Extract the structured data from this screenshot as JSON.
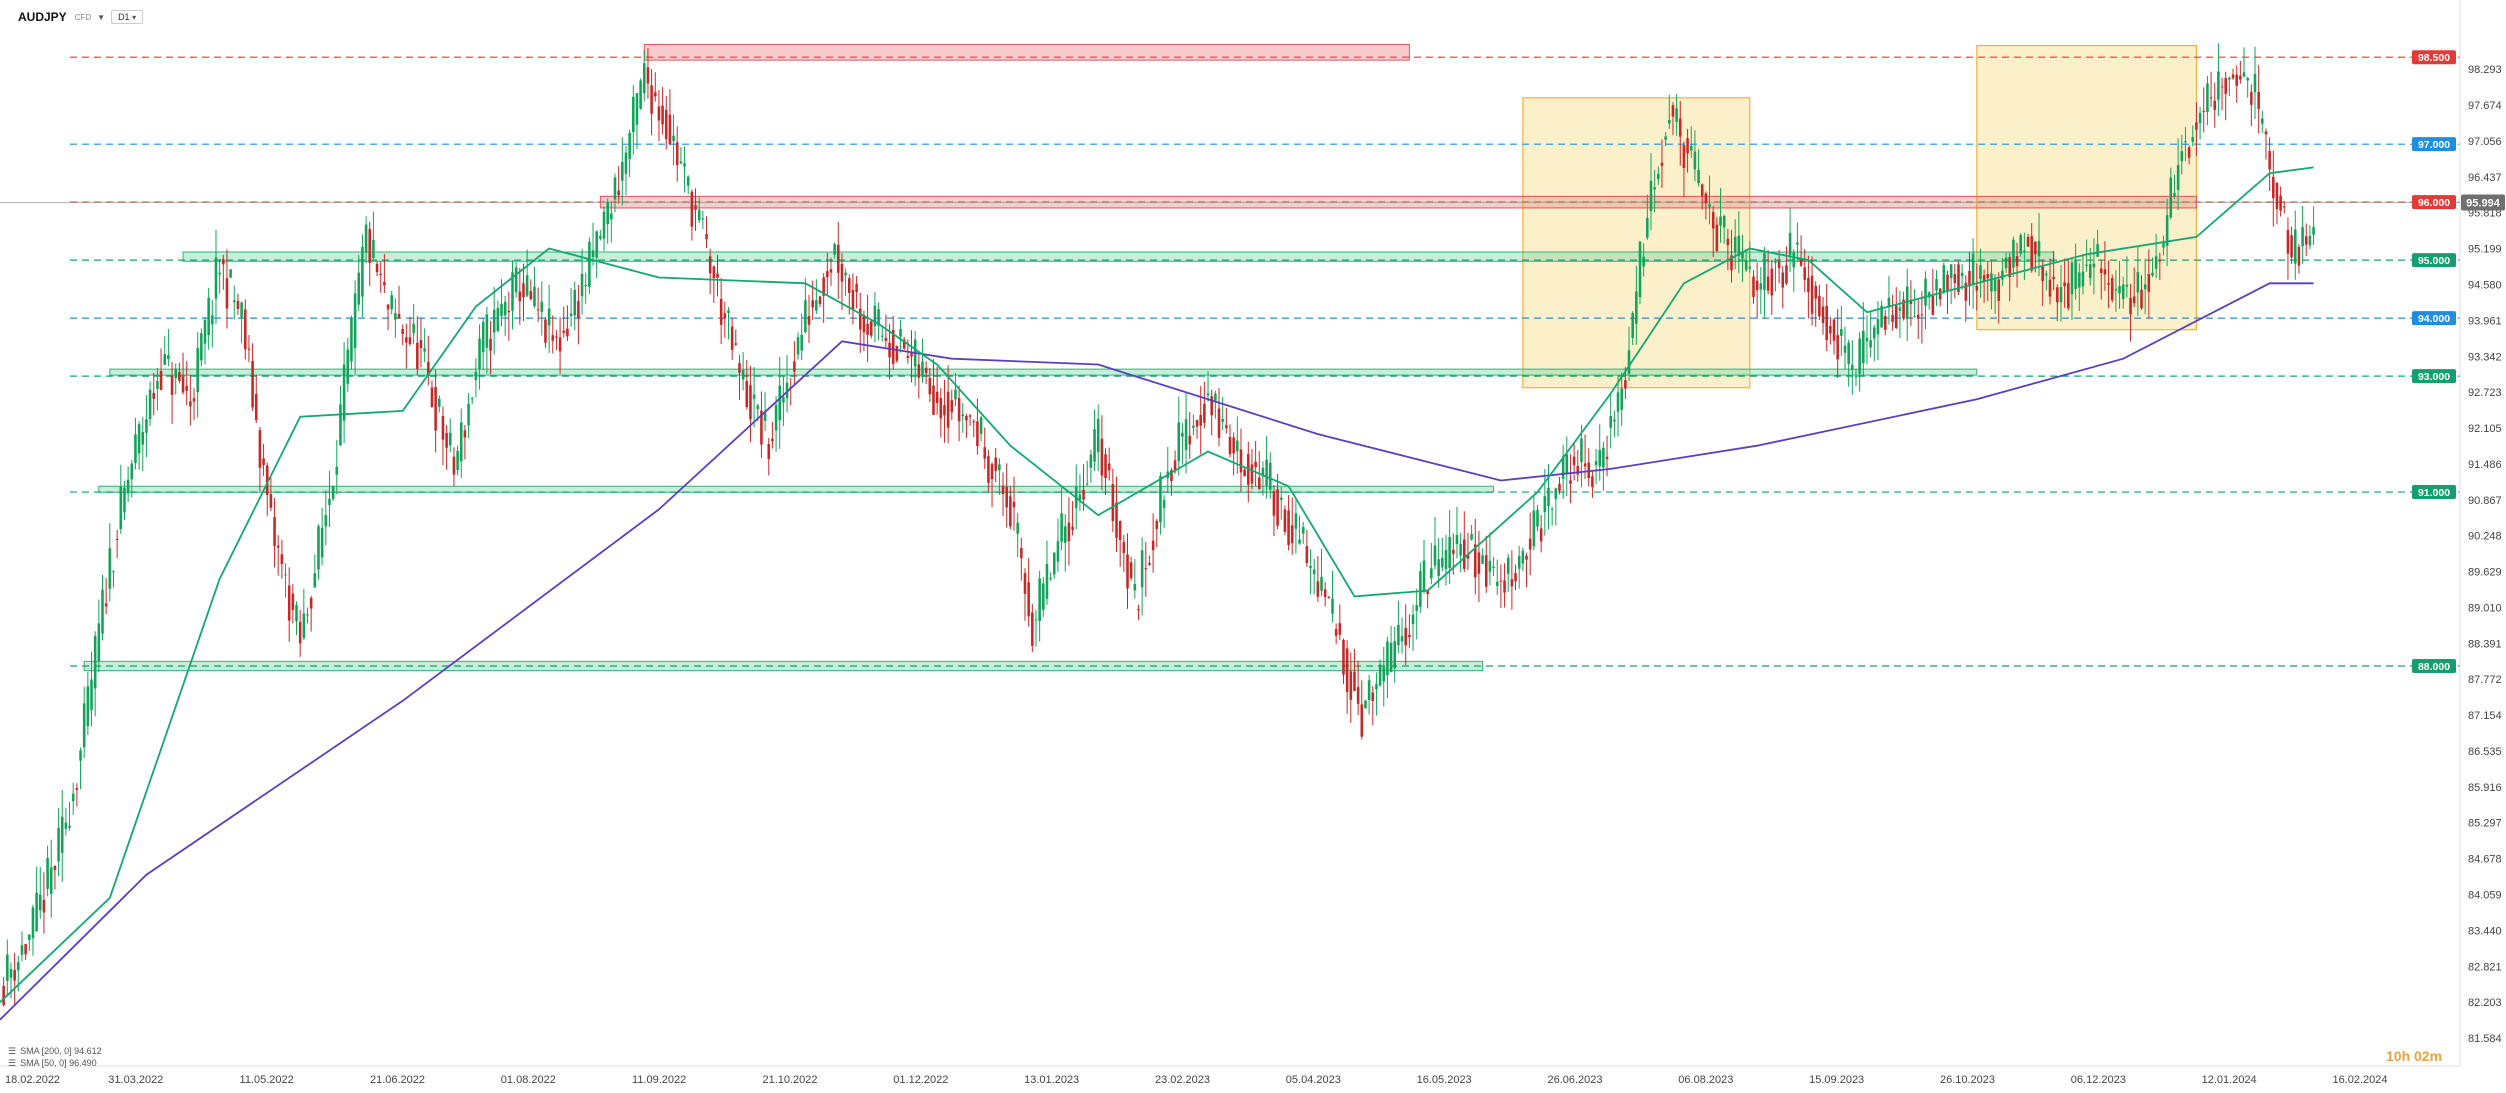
{
  "header": {
    "symbol": "AUDJPY",
    "instrument": "CFD",
    "timeframe": "D1"
  },
  "indicators": [
    {
      "label": "SMA [200, 0] 94.612",
      "color": "#5b3fc0"
    },
    {
      "label": "SMA [50, 0] 96.490",
      "color": "#13a870"
    }
  ],
  "countdown": "10h 02m",
  "chart_data": {
    "type": "candlestick",
    "price_axis_ticks": [
      "98.293",
      "97.674",
      "97.056",
      "96.437",
      "95.818",
      "95.199",
      "94.580",
      "93.961",
      "93.342",
      "92.723",
      "92.105",
      "91.486",
      "90.867",
      "90.248",
      "89.629",
      "89.010",
      "88.391",
      "87.772",
      "87.154",
      "86.535",
      "85.916",
      "85.297",
      "84.678",
      "84.059",
      "83.440",
      "82.821",
      "82.203",
      "81.584"
    ],
    "date_axis_ticks": [
      "18.02.2022",
      "31.03.2022",
      "11.05.2022",
      "21.06.2022",
      "01.08.2022",
      "11.09.2022",
      "21.10.2022",
      "01.12.2022",
      "13.01.2023",
      "23.02.2023",
      "05.04.2023",
      "16.05.2023",
      "26.06.2023",
      "06.08.2023",
      "15.09.2023",
      "26.10.2023",
      "06.12.2023",
      "12.01.2024",
      "16.02.2024"
    ],
    "current_price": "95.994",
    "horizontal_levels": [
      {
        "label": "98.500",
        "value": 98.5,
        "kind": "resistance"
      },
      {
        "label": "97.000",
        "value": 97.0,
        "kind": "neutral"
      },
      {
        "label": "96.000",
        "value": 96.0,
        "kind": "resistance"
      },
      {
        "label": "95.000",
        "value": 95.0,
        "kind": "support"
      },
      {
        "label": "94.000",
        "value": 94.0,
        "kind": "neutral"
      },
      {
        "label": "93.000",
        "value": 93.0,
        "kind": "support"
      },
      {
        "label": "91.000",
        "value": 91.0,
        "kind": "support"
      },
      {
        "label": "88.000",
        "value": 88.0,
        "kind": "support"
      }
    ],
    "price_path": [
      [
        0,
        82.5
      ],
      [
        8,
        83.3
      ],
      [
        16,
        84.8
      ],
      [
        22,
        86.5
      ],
      [
        30,
        89.8
      ],
      [
        36,
        91.5
      ],
      [
        44,
        93.2
      ],
      [
        52,
        92.6
      ],
      [
        60,
        94.9
      ],
      [
        66,
        94.0
      ],
      [
        74,
        90.4
      ],
      [
        82,
        88.4
      ],
      [
        90,
        91.0
      ],
      [
        100,
        95.4
      ],
      [
        106,
        94.1
      ],
      [
        114,
        93.5
      ],
      [
        124,
        91.4
      ],
      [
        132,
        93.6
      ],
      [
        142,
        94.6
      ],
      [
        152,
        93.5
      ],
      [
        160,
        94.7
      ],
      [
        170,
        96.6
      ],
      [
        176,
        98.2
      ],
      [
        182,
        97.4
      ],
      [
        192,
        95.4
      ],
      [
        202,
        93.0
      ],
      [
        210,
        91.8
      ],
      [
        220,
        94.0
      ],
      [
        228,
        95.2
      ],
      [
        236,
        94.0
      ],
      [
        246,
        93.5
      ],
      [
        256,
        92.7
      ],
      [
        266,
        92.2
      ],
      [
        276,
        90.7
      ],
      [
        282,
        88.7
      ],
      [
        290,
        90.2
      ],
      [
        300,
        91.9
      ],
      [
        310,
        89.1
      ],
      [
        320,
        91.6
      ],
      [
        330,
        92.6
      ],
      [
        338,
        91.6
      ],
      [
        346,
        91.2
      ],
      [
        356,
        90.0
      ],
      [
        364,
        88.8
      ],
      [
        372,
        87.2
      ],
      [
        380,
        88.1
      ],
      [
        390,
        89.6
      ],
      [
        400,
        90.1
      ],
      [
        410,
        89.4
      ],
      [
        420,
        90.4
      ],
      [
        430,
        91.6
      ],
      [
        436,
        91.3
      ],
      [
        444,
        93.0
      ],
      [
        450,
        96.0
      ],
      [
        456,
        97.6
      ],
      [
        462,
        96.6
      ],
      [
        470,
        95.4
      ],
      [
        480,
        94.6
      ],
      [
        490,
        95.1
      ],
      [
        500,
        93.9
      ],
      [
        506,
        93.1
      ],
      [
        516,
        94.2
      ],
      [
        524,
        94.1
      ],
      [
        532,
        94.8
      ],
      [
        544,
        94.6
      ],
      [
        554,
        95.3
      ],
      [
        562,
        94.4
      ],
      [
        572,
        94.9
      ],
      [
        582,
        94.3
      ],
      [
        590,
        95.1
      ],
      [
        596,
        96.9
      ],
      [
        602,
        97.7
      ],
      [
        610,
        98.3
      ],
      [
        616,
        97.8
      ],
      [
        620,
        96.6
      ],
      [
        626,
        95.0
      ],
      [
        632,
        95.5
      ]
    ],
    "sma200_path": [
      [
        0,
        81.9
      ],
      [
        40,
        84.4
      ],
      [
        110,
        87.4
      ],
      [
        180,
        90.7
      ],
      [
        230,
        93.6
      ],
      [
        260,
        93.3
      ],
      [
        300,
        93.2
      ],
      [
        360,
        92.0
      ],
      [
        410,
        91.2
      ],
      [
        440,
        91.4
      ],
      [
        480,
        91.8
      ],
      [
        540,
        92.6
      ],
      [
        580,
        93.3
      ],
      [
        620,
        94.6
      ],
      [
        632,
        94.6
      ]
    ],
    "sma50_path": [
      [
        0,
        82.2
      ],
      [
        30,
        84.0
      ],
      [
        60,
        89.5
      ],
      [
        82,
        92.3
      ],
      [
        110,
        92.4
      ],
      [
        130,
        94.2
      ],
      [
        150,
        95.2
      ],
      [
        180,
        94.7
      ],
      [
        220,
        94.6
      ],
      [
        240,
        93.9
      ],
      [
        256,
        93.2
      ],
      [
        276,
        91.8
      ],
      [
        300,
        90.6
      ],
      [
        330,
        91.7
      ],
      [
        352,
        91.1
      ],
      [
        370,
        89.2
      ],
      [
        390,
        89.3
      ],
      [
        420,
        91.0
      ],
      [
        440,
        92.7
      ],
      [
        460,
        94.6
      ],
      [
        478,
        95.2
      ],
      [
        494,
        95.0
      ],
      [
        510,
        94.1
      ],
      [
        540,
        94.6
      ],
      [
        570,
        95.1
      ],
      [
        600,
        95.4
      ],
      [
        620,
        96.5
      ],
      [
        632,
        96.6
      ]
    ],
    "zones": [
      {
        "x": [
          176,
          385
        ],
        "y": [
          98.45,
          98.72
        ],
        "kind": "resistance"
      },
      {
        "x": [
          164,
          600
        ],
        "y": [
          95.9,
          96.1
        ],
        "kind": "resistance"
      },
      {
        "x": [
          50,
          561
        ],
        "y": [
          94.98,
          95.14
        ],
        "kind": "support"
      },
      {
        "x": [
          30,
          540
        ],
        "y": [
          93.02,
          93.12
        ],
        "kind": "support"
      },
      {
        "x": [
          27,
          408
        ],
        "y": [
          91.0,
          91.1
        ],
        "kind": "support"
      },
      {
        "x": [
          23,
          405
        ],
        "y": [
          87.92,
          88.08
        ],
        "kind": "support"
      }
    ],
    "highlight_boxes": [
      {
        "x": [
          416,
          478
        ],
        "y": [
          92.8,
          97.8
        ]
      },
      {
        "x": [
          540,
          600
        ],
        "y": [
          93.8,
          98.7
        ]
      }
    ],
    "x_range": [
      0,
      672
    ],
    "y_range": [
      81.584,
      98.9
    ],
    "grid": false,
    "legend": "bottom-left"
  }
}
